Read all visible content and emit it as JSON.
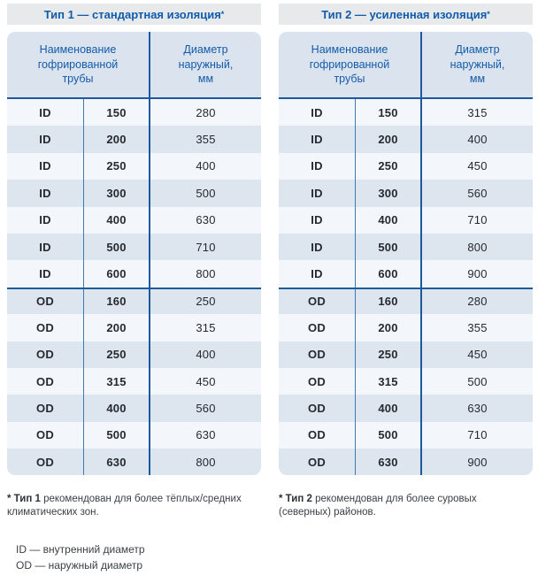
{
  "colors": {
    "title_bg": "#e8e9eb",
    "title_text": "#0f5cad",
    "header_bg": "#dbe3ef",
    "header_text": "#135ba8",
    "row_light": "#f3f6fa",
    "row_shaded": "#dde5ef",
    "body_text": "#26292e",
    "divider_medium_blue": "#3d79b3",
    "divider_navy": "#1c5a9e"
  },
  "tables": [
    {
      "title": "Тип 1 — стандартная изоляция",
      "title_asterisk": "*",
      "headers": [
        "Наименование\nгофрированной\nтрубы",
        "Диаметр\nнаружный,\nмм"
      ],
      "section_break_index": 7,
      "rows": [
        [
          "ID",
          "150",
          "280"
        ],
        [
          "ID",
          "200",
          "355"
        ],
        [
          "ID",
          "250",
          "400"
        ],
        [
          "ID",
          "300",
          "500"
        ],
        [
          "ID",
          "400",
          "630"
        ],
        [
          "ID",
          "500",
          "710"
        ],
        [
          "ID",
          "600",
          "800"
        ],
        [
          "OD",
          "160",
          "250"
        ],
        [
          "OD",
          "200",
          "315"
        ],
        [
          "OD",
          "250",
          "400"
        ],
        [
          "OD",
          "315",
          "450"
        ],
        [
          "OD",
          "400",
          "560"
        ],
        [
          "OD",
          "500",
          "630"
        ],
        [
          "OD",
          "630",
          "800"
        ]
      ],
      "footnote_bold": "* Тип 1",
      "footnote_rest": " рекомендован для более тёплых/средних климатических зон."
    },
    {
      "title": "Тип 2 — усиленная изоляция",
      "title_asterisk": "*",
      "headers": [
        "Наименование\nгофрированной\nтрубы",
        "Диаметр\nнаружный,\nмм"
      ],
      "section_break_index": 7,
      "rows": [
        [
          "ID",
          "150",
          "315"
        ],
        [
          "ID",
          "200",
          "400"
        ],
        [
          "ID",
          "250",
          "450"
        ],
        [
          "ID",
          "300",
          "560"
        ],
        [
          "ID",
          "400",
          "710"
        ],
        [
          "ID",
          "500",
          "800"
        ],
        [
          "ID",
          "600",
          "900"
        ],
        [
          "OD",
          "160",
          "280"
        ],
        [
          "OD",
          "200",
          "355"
        ],
        [
          "OD",
          "250",
          "450"
        ],
        [
          "OD",
          "315",
          "500"
        ],
        [
          "OD",
          "400",
          "630"
        ],
        [
          "OD",
          "500",
          "710"
        ],
        [
          "OD",
          "630",
          "900"
        ]
      ],
      "footnote_bold": "* Тип 2",
      "footnote_rest": " рекомендован для более суровых (северных) районов."
    }
  ],
  "legend": {
    "line1": "ID — внутренний диаметр",
    "line2": "OD — наружный диаметр"
  }
}
